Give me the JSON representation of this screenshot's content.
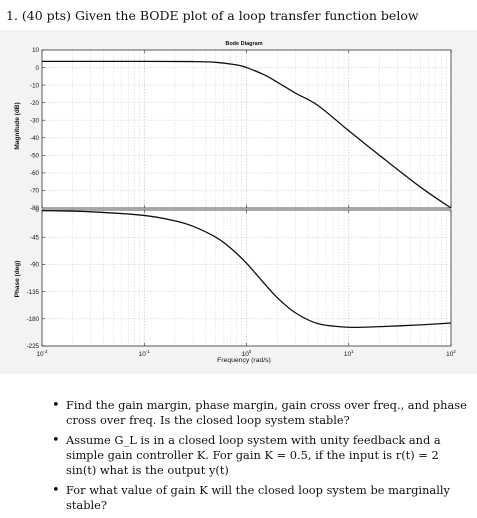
{
  "question": "1. (40 pts) Given the BODE plot of a loop transfer function below",
  "bullets": [
    "Find the gain margin, phase margin, gain cross over freq., and phase cross over freq. Is the closed loop system stable?",
    "Assume G_L is in a closed loop system with unity feedback and a simple gain controller K. For gain K = 0.5, if the input is r(t) = 2 sin(t) what is the output y(t)",
    "For what value of gain K will the closed loop system be marginally stable?"
  ],
  "chart_data": {
    "type": "line",
    "title": "Bode Diagram",
    "xlabel": "Frequency (rad/s)",
    "xscale": "log",
    "xlim": [
      0.01,
      100
    ],
    "x_ticks": [
      0.01,
      0.1,
      1,
      10,
      100
    ],
    "x_tick_labels": [
      "10^-2",
      "10^-1",
      "10^0",
      "10^1",
      "10^2"
    ],
    "grid": true,
    "magnitude": {
      "ylabel": "Magnitude (dB)",
      "ylim": [
        -80,
        10
      ],
      "y_ticks": [
        10,
        0,
        -10,
        -20,
        -30,
        -40,
        -50,
        -60,
        -70,
        -80
      ],
      "x": [
        0.01,
        0.1,
        0.3,
        0.5,
        0.8,
        1,
        1.5,
        2,
        3,
        5,
        10,
        20,
        50,
        100
      ],
      "values": [
        3.5,
        3.5,
        3.4,
        3.0,
        1.5,
        0,
        -4.2,
        -8.3,
        -14.5,
        -21.6,
        -36,
        -50,
        -68,
        -80
      ]
    },
    "phase": {
      "ylabel": "Phase (deg)",
      "ylim": [
        -225,
        0
      ],
      "y_ticks": [
        0,
        -45,
        -90,
        -135,
        -180,
        -225
      ],
      "x": [
        0.01,
        0.03,
        0.1,
        0.2,
        0.3,
        0.5,
        0.7,
        1,
        1.5,
        2,
        3,
        5,
        10,
        20,
        50,
        100
      ],
      "values": [
        -1,
        -3,
        -9,
        -18,
        -27,
        -45,
        -63,
        -88,
        -122,
        -145,
        -170,
        -188,
        -194,
        -193,
        -190,
        -187
      ]
    }
  }
}
